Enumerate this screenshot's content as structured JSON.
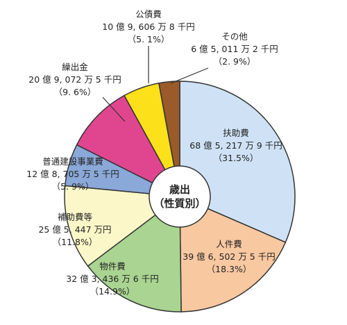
{
  "chart_data": {
    "type": "pie",
    "title": "",
    "center_label": [
      "歳出",
      "（性質別）"
    ],
    "start_angle_deg": 0,
    "direction": "clockwise",
    "slices": [
      {
        "name": "扶助費",
        "amount": "68 億 5, 217 万 9 千円",
        "pct_label": "（31.5%）",
        "value": 31.5,
        "color": "#cfe2f5"
      },
      {
        "name": "人件費",
        "amount": "39 億 6, 502 万 5 千円",
        "pct_label": "（18.3%）",
        "value": 18.3,
        "color": "#f8c8a0"
      },
      {
        "name": "物件費",
        "amount": "32 億 3, 436 万 6 千円",
        "pct_label": "（14.9%）",
        "value": 14.9,
        "color": "#a9d491"
      },
      {
        "name": "補助費等",
        "amount": "25 億 5, 447 万円",
        "pct_label": "（11.8%）",
        "value": 11.8,
        "color": "#fbf7c8"
      },
      {
        "name": "普通建設事業費",
        "amount": "12 億 8, 705 万 5 千円",
        "pct_label": "（5. 9%）",
        "value": 5.9,
        "color": "#8aa8d8"
      },
      {
        "name": "繰出金",
        "amount": "20 億 9, 072 万 5 千円",
        "pct_label": "（9. 6%）",
        "value": 9.6,
        "color": "#e0468f"
      },
      {
        "name": "公債費",
        "amount": "10 億 9, 606 万 8 千円",
        "pct_label": "（5. 1%）",
        "value": 5.1,
        "color": "#fce01a"
      },
      {
        "name": "その他",
        "amount": "6 億 5, 011 万 2 千円",
        "pct_label": "（2. 9%）",
        "value": 2.9,
        "color": "#9a5a2a"
      }
    ]
  }
}
